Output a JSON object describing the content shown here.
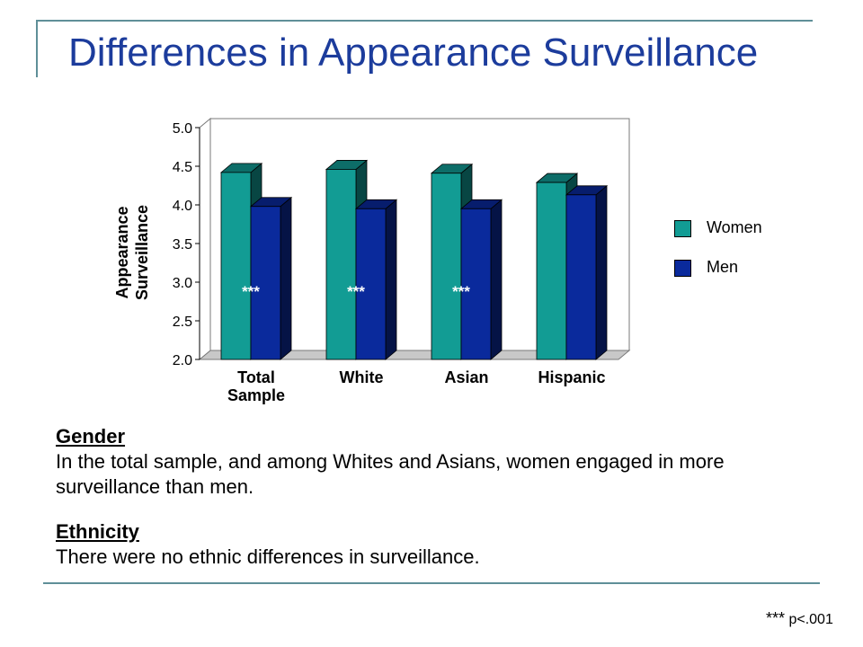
{
  "slide": {
    "title": "Differences in Appearance Surveillance"
  },
  "chart_data": {
    "type": "bar",
    "categories": [
      "Total Sample",
      "White",
      "Asian",
      "Hispanic"
    ],
    "category_lines": [
      [
        "Total",
        "Sample"
      ],
      [
        "White"
      ],
      [
        "Asian"
      ],
      [
        "Hispanic"
      ]
    ],
    "series": [
      {
        "name": "Women",
        "values": [
          4.42,
          4.46,
          4.41,
          4.29
        ],
        "color": "#129c94"
      },
      {
        "name": "Men",
        "values": [
          3.98,
          3.95,
          3.95,
          4.13
        ],
        "color": "#0a2a9c"
      }
    ],
    "significance": [
      "***",
      "***",
      "***",
      ""
    ],
    "ylabel_lines": [
      "Appearance",
      "Surveillance"
    ],
    "ylim": [
      2.0,
      5.0
    ],
    "yticks": [
      "2.0",
      "2.5",
      "3.0",
      "3.5",
      "4.0",
      "4.5",
      "5.0"
    ],
    "grid": false,
    "legend": "right"
  },
  "legend": {
    "women": "Women",
    "men": "Men"
  },
  "gender": {
    "heading": "Gender",
    "text": "In the total sample, and among Whites and Asians, women engaged in more surveillance than men."
  },
  "ethnicity": {
    "heading": "Ethnicity",
    "text": "There were no ethnic differences in surveillance."
  },
  "footnote": {
    "stars": "***",
    "text": "p<.001"
  }
}
